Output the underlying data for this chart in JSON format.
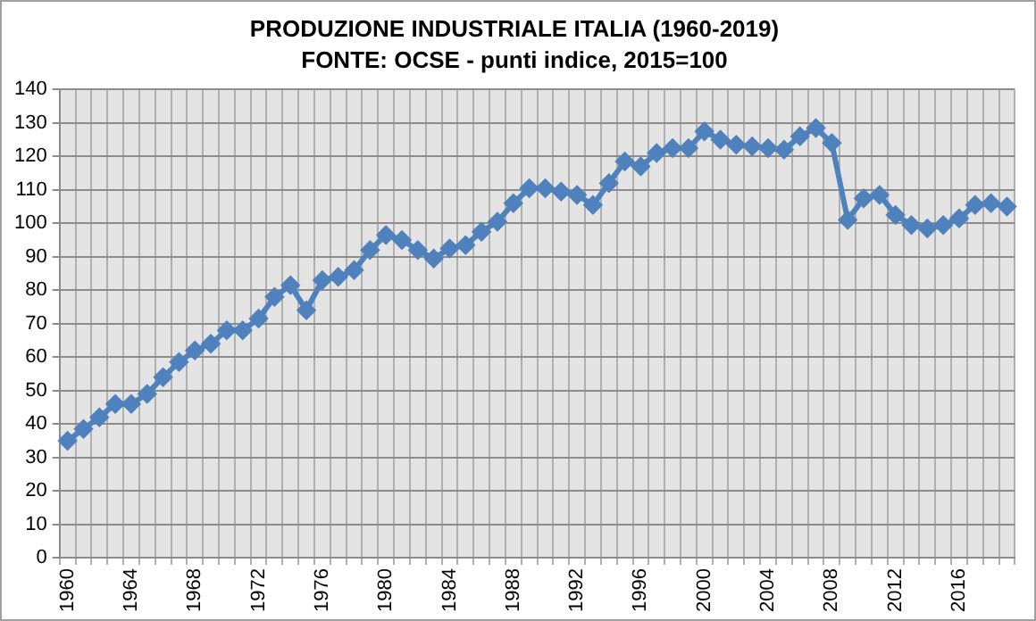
{
  "chart_data": {
    "type": "line",
    "title": "PRODUZIONE INDUSTRIALE ITALIA (1960-2019)",
    "subtitle": "FONTE: OCSE - punti indice, 2015=100",
    "categories": [
      "1960",
      null,
      null,
      null,
      "1964",
      null,
      null,
      null,
      "1968",
      null,
      null,
      null,
      "1972",
      null,
      null,
      null,
      "1976",
      null,
      null,
      null,
      "1980",
      null,
      null,
      null,
      "1984",
      null,
      null,
      null,
      "1988",
      null,
      null,
      null,
      "1992",
      null,
      null,
      null,
      "1996",
      null,
      null,
      null,
      "2000",
      null,
      null,
      null,
      "2004",
      null,
      null,
      null,
      "2008",
      null,
      null,
      null,
      "2012",
      null,
      null,
      null,
      "2016",
      null,
      null,
      null
    ],
    "series": [
      {
        "color": "#4f81bd",
        "values": [
          35,
          38.5,
          42,
          46,
          46,
          49,
          54,
          58.5,
          62,
          64,
          68,
          68,
          71.5,
          78,
          81.5,
          74,
          83,
          84,
          86,
          92,
          96.5,
          95,
          92,
          89.5,
          92.5,
          93.5,
          97.5,
          100.5,
          106,
          110.5,
          110.5,
          109.5,
          108.5,
          105.5,
          112,
          118.5,
          117,
          121,
          122.5,
          122.5,
          127.5,
          125,
          123.5,
          123,
          122.5,
          122,
          126,
          128.5,
          124,
          101,
          107.5,
          108.5,
          102.5,
          99.5,
          98.5,
          99.5,
          101.5,
          105.5,
          106,
          105
        ]
      }
    ],
    "ylim": [
      0,
      140
    ],
    "yticks": [
      0,
      10,
      20,
      30,
      40,
      50,
      60,
      70,
      80,
      90,
      100,
      110,
      120,
      130,
      140
    ],
    "grid": true,
    "legend": false,
    "marker": "diamond",
    "line_style": "solid"
  }
}
